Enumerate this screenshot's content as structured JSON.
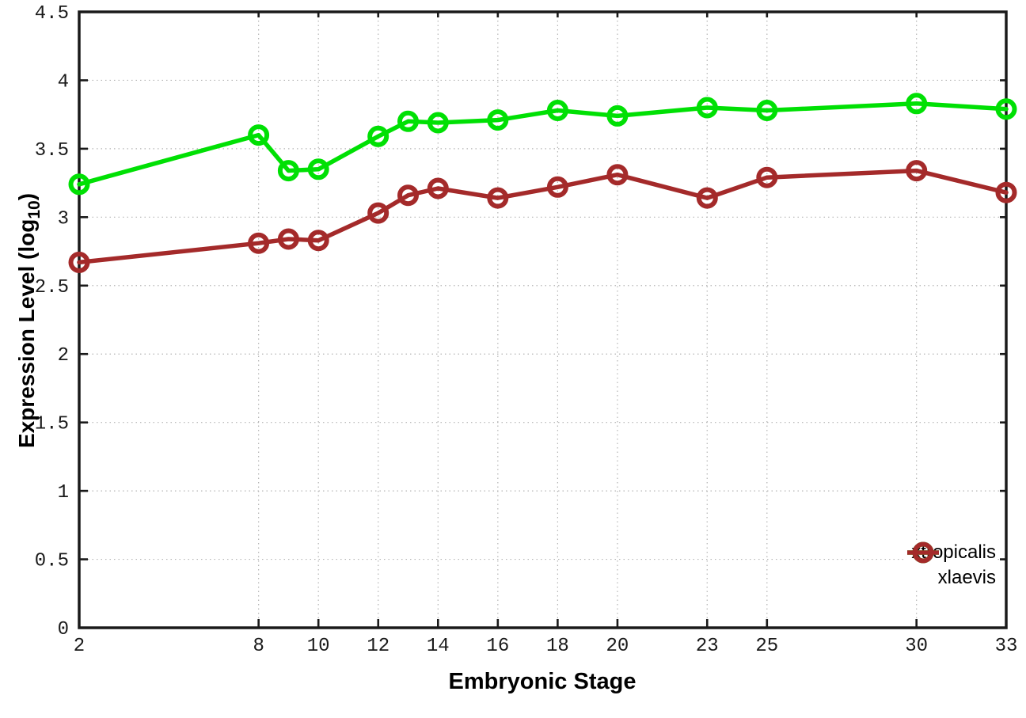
{
  "chart_data": {
    "type": "line",
    "title": "",
    "xlabel": "Embryonic Stage",
    "ylabel": "Expression Level (log10)",
    "ylabel_parts": {
      "base": "Expression Level (log",
      "sub": "10",
      "close": ")"
    },
    "xlim": [
      2,
      33
    ],
    "ylim": [
      0,
      4.5
    ],
    "x_ticks": [
      2,
      8,
      10,
      12,
      14,
      16,
      18,
      20,
      23,
      25,
      30,
      33
    ],
    "y_ticks": [
      0,
      0.5,
      1,
      1.5,
      2,
      2.5,
      3,
      3.5,
      4,
      4.5
    ],
    "grid": true,
    "legend_position": "inside-bottom-right",
    "marker": "open-circle",
    "stages": [
      2,
      8,
      9,
      10,
      12,
      13,
      14,
      16,
      18,
      20,
      23,
      25,
      30,
      33
    ],
    "series": [
      {
        "name": "xtropicalis",
        "color": "#00e004",
        "values": [
          3.24,
          3.6,
          3.34,
          3.35,
          3.59,
          3.7,
          3.69,
          3.71,
          3.78,
          3.74,
          3.8,
          3.78,
          3.83,
          3.79
        ]
      },
      {
        "name": "xlaevis",
        "color": "#a42a2a",
        "values": [
          2.67,
          2.81,
          2.84,
          2.83,
          3.03,
          3.16,
          3.21,
          3.14,
          3.22,
          3.31,
          3.14,
          3.29,
          3.34,
          3.18
        ]
      }
    ],
    "colors": {
      "background": "#ffffff",
      "axis": "#1a1a1a",
      "gridline": "#b4b4b4",
      "tick_label": "#1a1a1a"
    }
  }
}
